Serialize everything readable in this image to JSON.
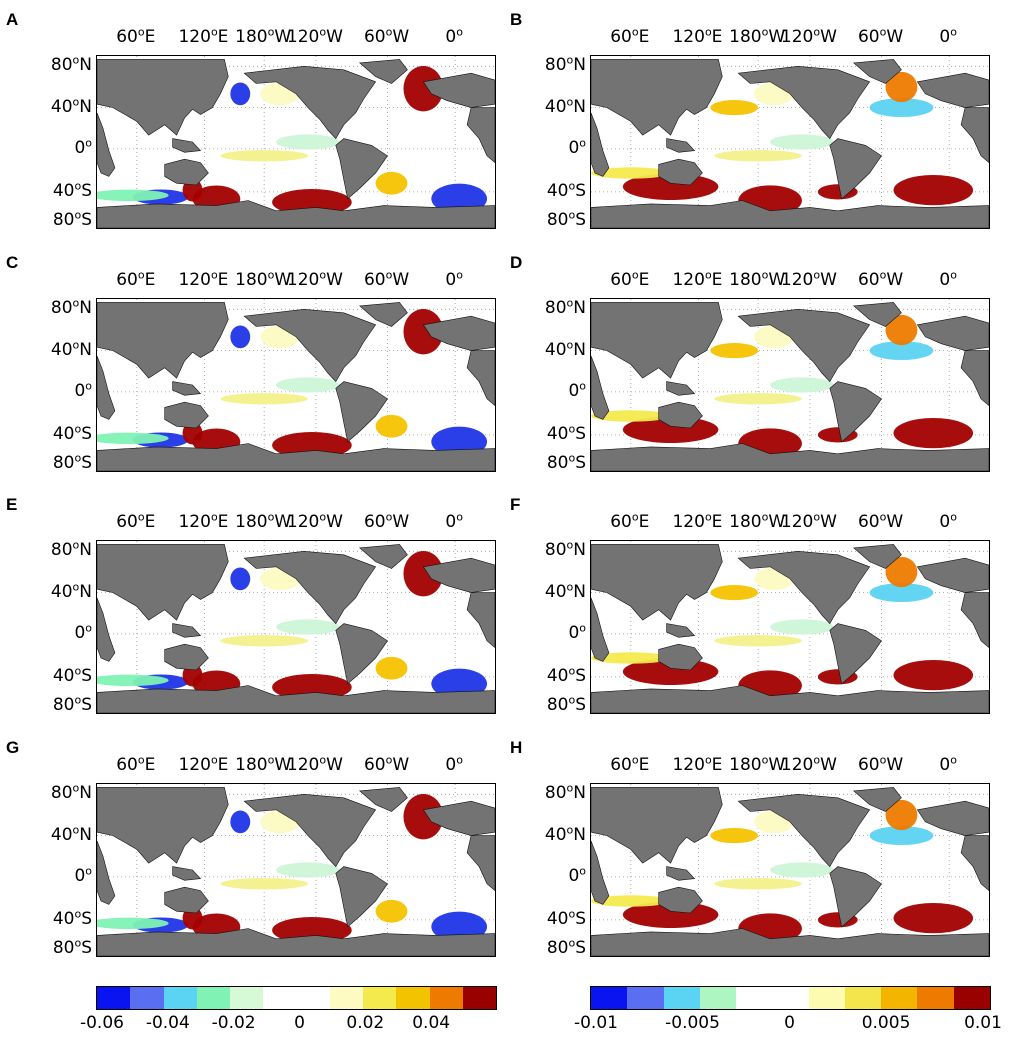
{
  "panels": [
    {
      "letter": "A"
    },
    {
      "letter": "B"
    },
    {
      "letter": "C"
    },
    {
      "letter": "D"
    },
    {
      "letter": "E"
    },
    {
      "letter": "F"
    },
    {
      "letter": "G"
    },
    {
      "letter": "H"
    }
  ],
  "lon_labels": [
    "60°E",
    "120°E",
    "180°W",
    "120°W",
    "60°W",
    "0°"
  ],
  "lat_labels": [
    "80°N",
    "40°N",
    "0°",
    "40°S",
    "80°S"
  ],
  "colors": {
    "land": "#737373",
    "ocean": "#ffffff",
    "dark_red": "#a30000",
    "dark_blue": "#1f35e6"
  },
  "colorbars": [
    {
      "name": "left",
      "swatches": [
        "#0a14f0",
        "#5a6ef2",
        "#5bd3f2",
        "#7ff2b4",
        "#d6fad6",
        "#ffffff",
        "#ffffff",
        "#fdfbc2",
        "#f4ea4d",
        "#f4c300",
        "#ee7a00",
        "#990000"
      ],
      "ticks": [
        "-0.06",
        "-0.04",
        "-0.02",
        "0",
        "0.02",
        "0.04"
      ]
    },
    {
      "name": "right",
      "swatches": [
        "#0a14f0",
        "#5a6ef2",
        "#5bd3f2",
        "#adf6c1",
        "#ffffff",
        "#ffffff",
        "#fdfbb0",
        "#f4e54d",
        "#f4b500",
        "#ee7a00",
        "#990000"
      ],
      "ticks": [
        "-0.01",
        "-0.005",
        "0",
        "0.005",
        "0.01"
      ]
    }
  ]
}
